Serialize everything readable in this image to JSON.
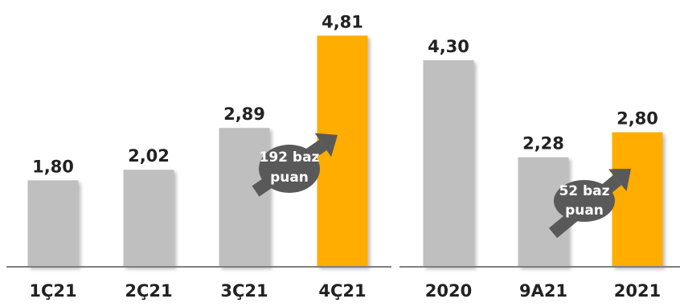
{
  "chart_data": [
    {
      "type": "bar",
      "categories": [
        "1Ç21",
        "2Ç21",
        "3Ç21",
        "4Ç21"
      ],
      "values": [
        1.8,
        2.02,
        2.89,
        4.81
      ],
      "value_labels": [
        "1,80",
        "2,02",
        "2,89",
        "4,81"
      ],
      "highlight": [
        false,
        false,
        false,
        true
      ],
      "ylim": [
        0,
        5.0
      ],
      "annotation": [
        "192 baz",
        "puan"
      ]
    },
    {
      "type": "bar",
      "categories": [
        "2020",
        "9A21",
        "2021"
      ],
      "values": [
        4.3,
        2.28,
        2.8
      ],
      "value_labels": [
        "4,30",
        "2,28",
        "2,80"
      ],
      "highlight": [
        false,
        false,
        true
      ],
      "ylim": [
        0,
        5.0
      ],
      "annotation": [
        "52 baz",
        "puan"
      ]
    }
  ],
  "colors": {
    "bar": "#bfbfbf",
    "highlight": "#ffad00",
    "arrow": "#595959",
    "axis": "#7f7f7f"
  }
}
